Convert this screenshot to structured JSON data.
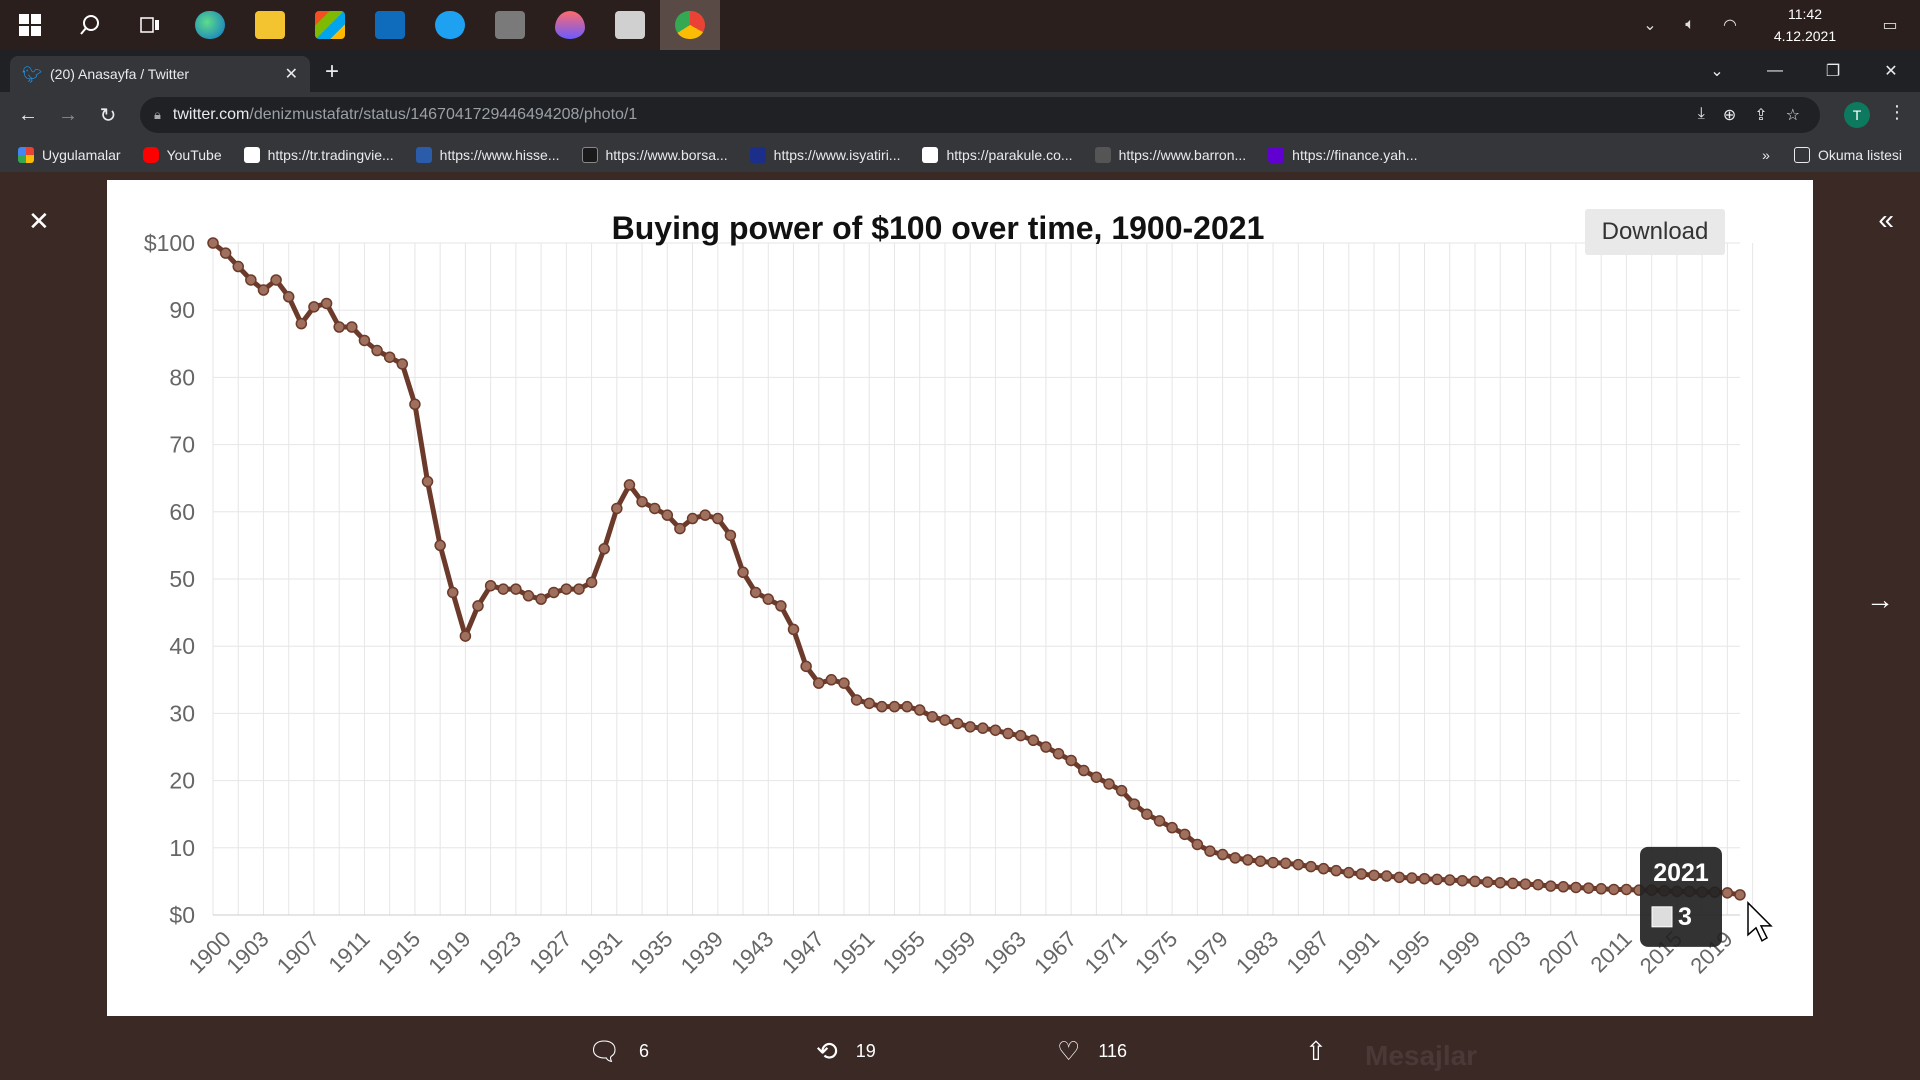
{
  "taskbar": {
    "time": "11:42",
    "date": "4.12.2021"
  },
  "browser": {
    "tab_title": "(20) Anasayfa / Twitter",
    "url_host": "twitter.com",
    "url_path": "/denizmustafatr/status/1467041729446494208/photo/1",
    "profile_initial": "T",
    "bookmarks": [
      {
        "label": "Uygulamalar",
        "color": "#e94235"
      },
      {
        "label": "YouTube",
        "color": "#ff0000"
      },
      {
        "label": "https://tr.tradingvie...",
        "color": "#131722"
      },
      {
        "label": "https://www.hisse...",
        "color": "#2a5caa"
      },
      {
        "label": "https://www.borsa...",
        "color": "#1a1a1a"
      },
      {
        "label": "https://www.isyatiri...",
        "color": "#1b2e8a"
      },
      {
        "label": "https://parakule.co...",
        "color": "#222222"
      },
      {
        "label": "https://www.barron...",
        "color": "#444444"
      },
      {
        "label": "https://finance.yah...",
        "color": "#6001d2"
      }
    ],
    "reading_list": "Okuma listesi",
    "more_bookmarks": "»"
  },
  "photo": {
    "download_label": "Download",
    "tooltip_year": "2021",
    "tooltip_value": "3"
  },
  "chart_data": {
    "type": "line",
    "title": "Buying power of $100 over time, 1900-2021",
    "xlabel": "",
    "ylabel": "",
    "ylim": [
      0,
      100
    ],
    "y_ticks": [
      "$0",
      "10",
      "20",
      "30",
      "40",
      "50",
      "60",
      "70",
      "80",
      "90",
      "$100"
    ],
    "x_ticks": [
      "1900",
      "1903",
      "1907",
      "1911",
      "1915",
      "1919",
      "1923",
      "1927",
      "1931",
      "1935",
      "1939",
      "1943",
      "1947",
      "1951",
      "1955",
      "1959",
      "1963",
      "1967",
      "1971",
      "1975",
      "1979",
      "1983",
      "1987",
      "1991",
      "1995",
      "1999",
      "2003",
      "2007",
      "2011",
      "2015",
      "2019"
    ],
    "grid": true,
    "color": "#6b3a2a",
    "series": [
      {
        "x_start": 1900,
        "values": [
          100,
          98.5,
          96.5,
          94.5,
          93,
          94.5,
          92,
          88,
          90.5,
          91,
          87.5,
          87.5,
          85.5,
          84,
          83,
          82,
          76,
          64.5,
          55,
          48,
          41.5,
          46,
          49,
          48.5,
          48.5,
          47.5,
          47,
          48,
          48.5,
          48.5,
          49.5,
          54.5,
          60.5,
          64,
          61.5,
          60.5,
          59.5,
          57.5,
          59,
          59.5,
          59,
          56.5,
          51,
          48,
          47,
          46,
          42.5,
          37,
          34.5,
          35,
          34.5,
          32,
          31.5,
          31,
          31,
          31,
          30.5,
          29.5,
          29,
          28.5,
          28,
          27.8,
          27.5,
          27,
          26.7,
          26,
          25,
          24,
          23,
          21.5,
          20.5,
          19.5,
          18.5,
          16.5,
          15,
          14,
          13,
          12,
          10.5,
          9.5,
          9,
          8.5,
          8.2,
          8,
          7.8,
          7.7,
          7.5,
          7.2,
          6.9,
          6.6,
          6.3,
          6.1,
          5.9,
          5.8,
          5.6,
          5.5,
          5.4,
          5.3,
          5.2,
          5.1,
          5,
          4.9,
          4.8,
          4.7,
          4.6,
          4.5,
          4.3,
          4.2,
          4.1,
          4,
          3.9,
          3.8,
          3.8,
          3.7,
          3.7,
          3.6,
          3.5,
          3.5,
          3.4,
          3.4,
          3.3,
          3
        ]
      }
    ]
  },
  "tweet_actions": {
    "replies": "6",
    "retweets": "19",
    "likes": "116",
    "messages_label": "Mesajlar"
  }
}
